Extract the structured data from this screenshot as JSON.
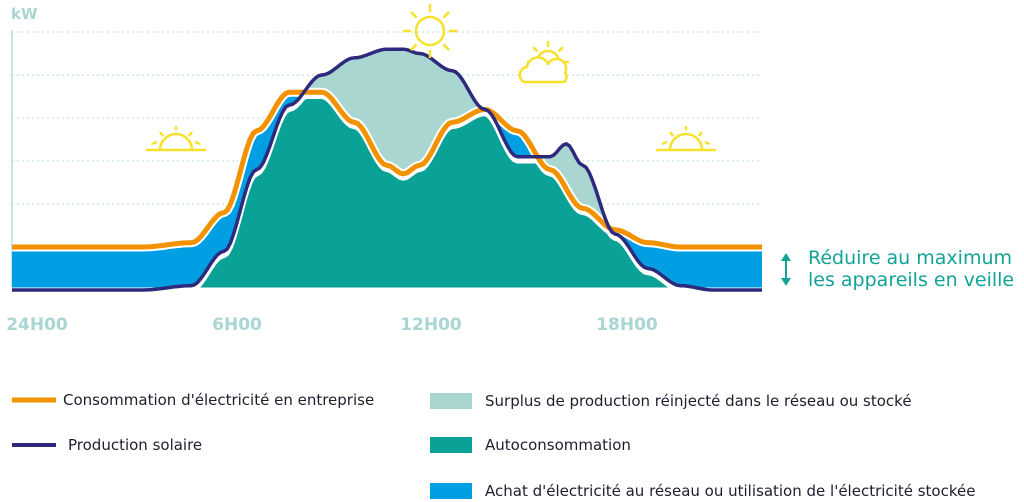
{
  "chart_data": {
    "type": "area",
    "ylabel": "kW",
    "x_ticks": [
      "24H00",
      "6H00",
      "12H00",
      "18H00"
    ],
    "x_range_hours": [
      0,
      23
    ],
    "annotation": "Réduire au maximum les appareils en veille",
    "annotation_lines": [
      "Réduire au maximum",
      "les appareils en veille"
    ],
    "grid": true,
    "legend_position": "bottom",
    "series": [
      {
        "name": "Consommation d'électricité en entreprise",
        "kind": "line",
        "color": "#f39200",
        "x": [
          0,
          4,
          5.5,
          6.5,
          7.5,
          8.5,
          9.5,
          10.5,
          11.5,
          12,
          12.5,
          13.5,
          14.5,
          15.5,
          16.5,
          17.5,
          18.5,
          19.5,
          20.5,
          21.5,
          23
        ],
        "y": [
          1.0,
          1.0,
          1.1,
          1.8,
          3.7,
          4.6,
          4.6,
          3.9,
          2.9,
          2.7,
          2.9,
          3.9,
          4.2,
          3.7,
          2.8,
          1.9,
          1.4,
          1.1,
          1.0,
          1.0,
          1.0
        ]
      },
      {
        "name": "Production solaire",
        "kind": "line",
        "color": "#2d2a7e",
        "x": [
          0,
          4,
          5.5,
          6.5,
          7.5,
          8.5,
          9.5,
          10.5,
          11.5,
          12,
          12.5,
          13.5,
          14.5,
          15.5,
          16.5,
          17,
          17.5,
          18.5,
          19.5,
          20.5,
          21.5,
          23
        ],
        "y": [
          0,
          0,
          0.1,
          0.9,
          2.8,
          4.3,
          5.0,
          5.4,
          5.6,
          5.6,
          5.5,
          5.1,
          4.2,
          3.1,
          3.1,
          3.4,
          2.9,
          1.3,
          0.5,
          0.1,
          0,
          0
        ]
      },
      {
        "name": "Surplus de production réinjecté dans le réseau ou stocké",
        "kind": "legend-area",
        "color": "#a9d6d0"
      },
      {
        "name": "Autoconsommation",
        "kind": "legend-area",
        "color": "#0aa197"
      },
      {
        "name": "Achat d'électricité au réseau ou utilisation de l'électricité stockée",
        "kind": "legend-area",
        "color": "#009fe3"
      }
    ],
    "weather_icons": [
      "sunrise-icon",
      "sun-icon",
      "sun-cloud-icon",
      "sunset-icon"
    ]
  }
}
